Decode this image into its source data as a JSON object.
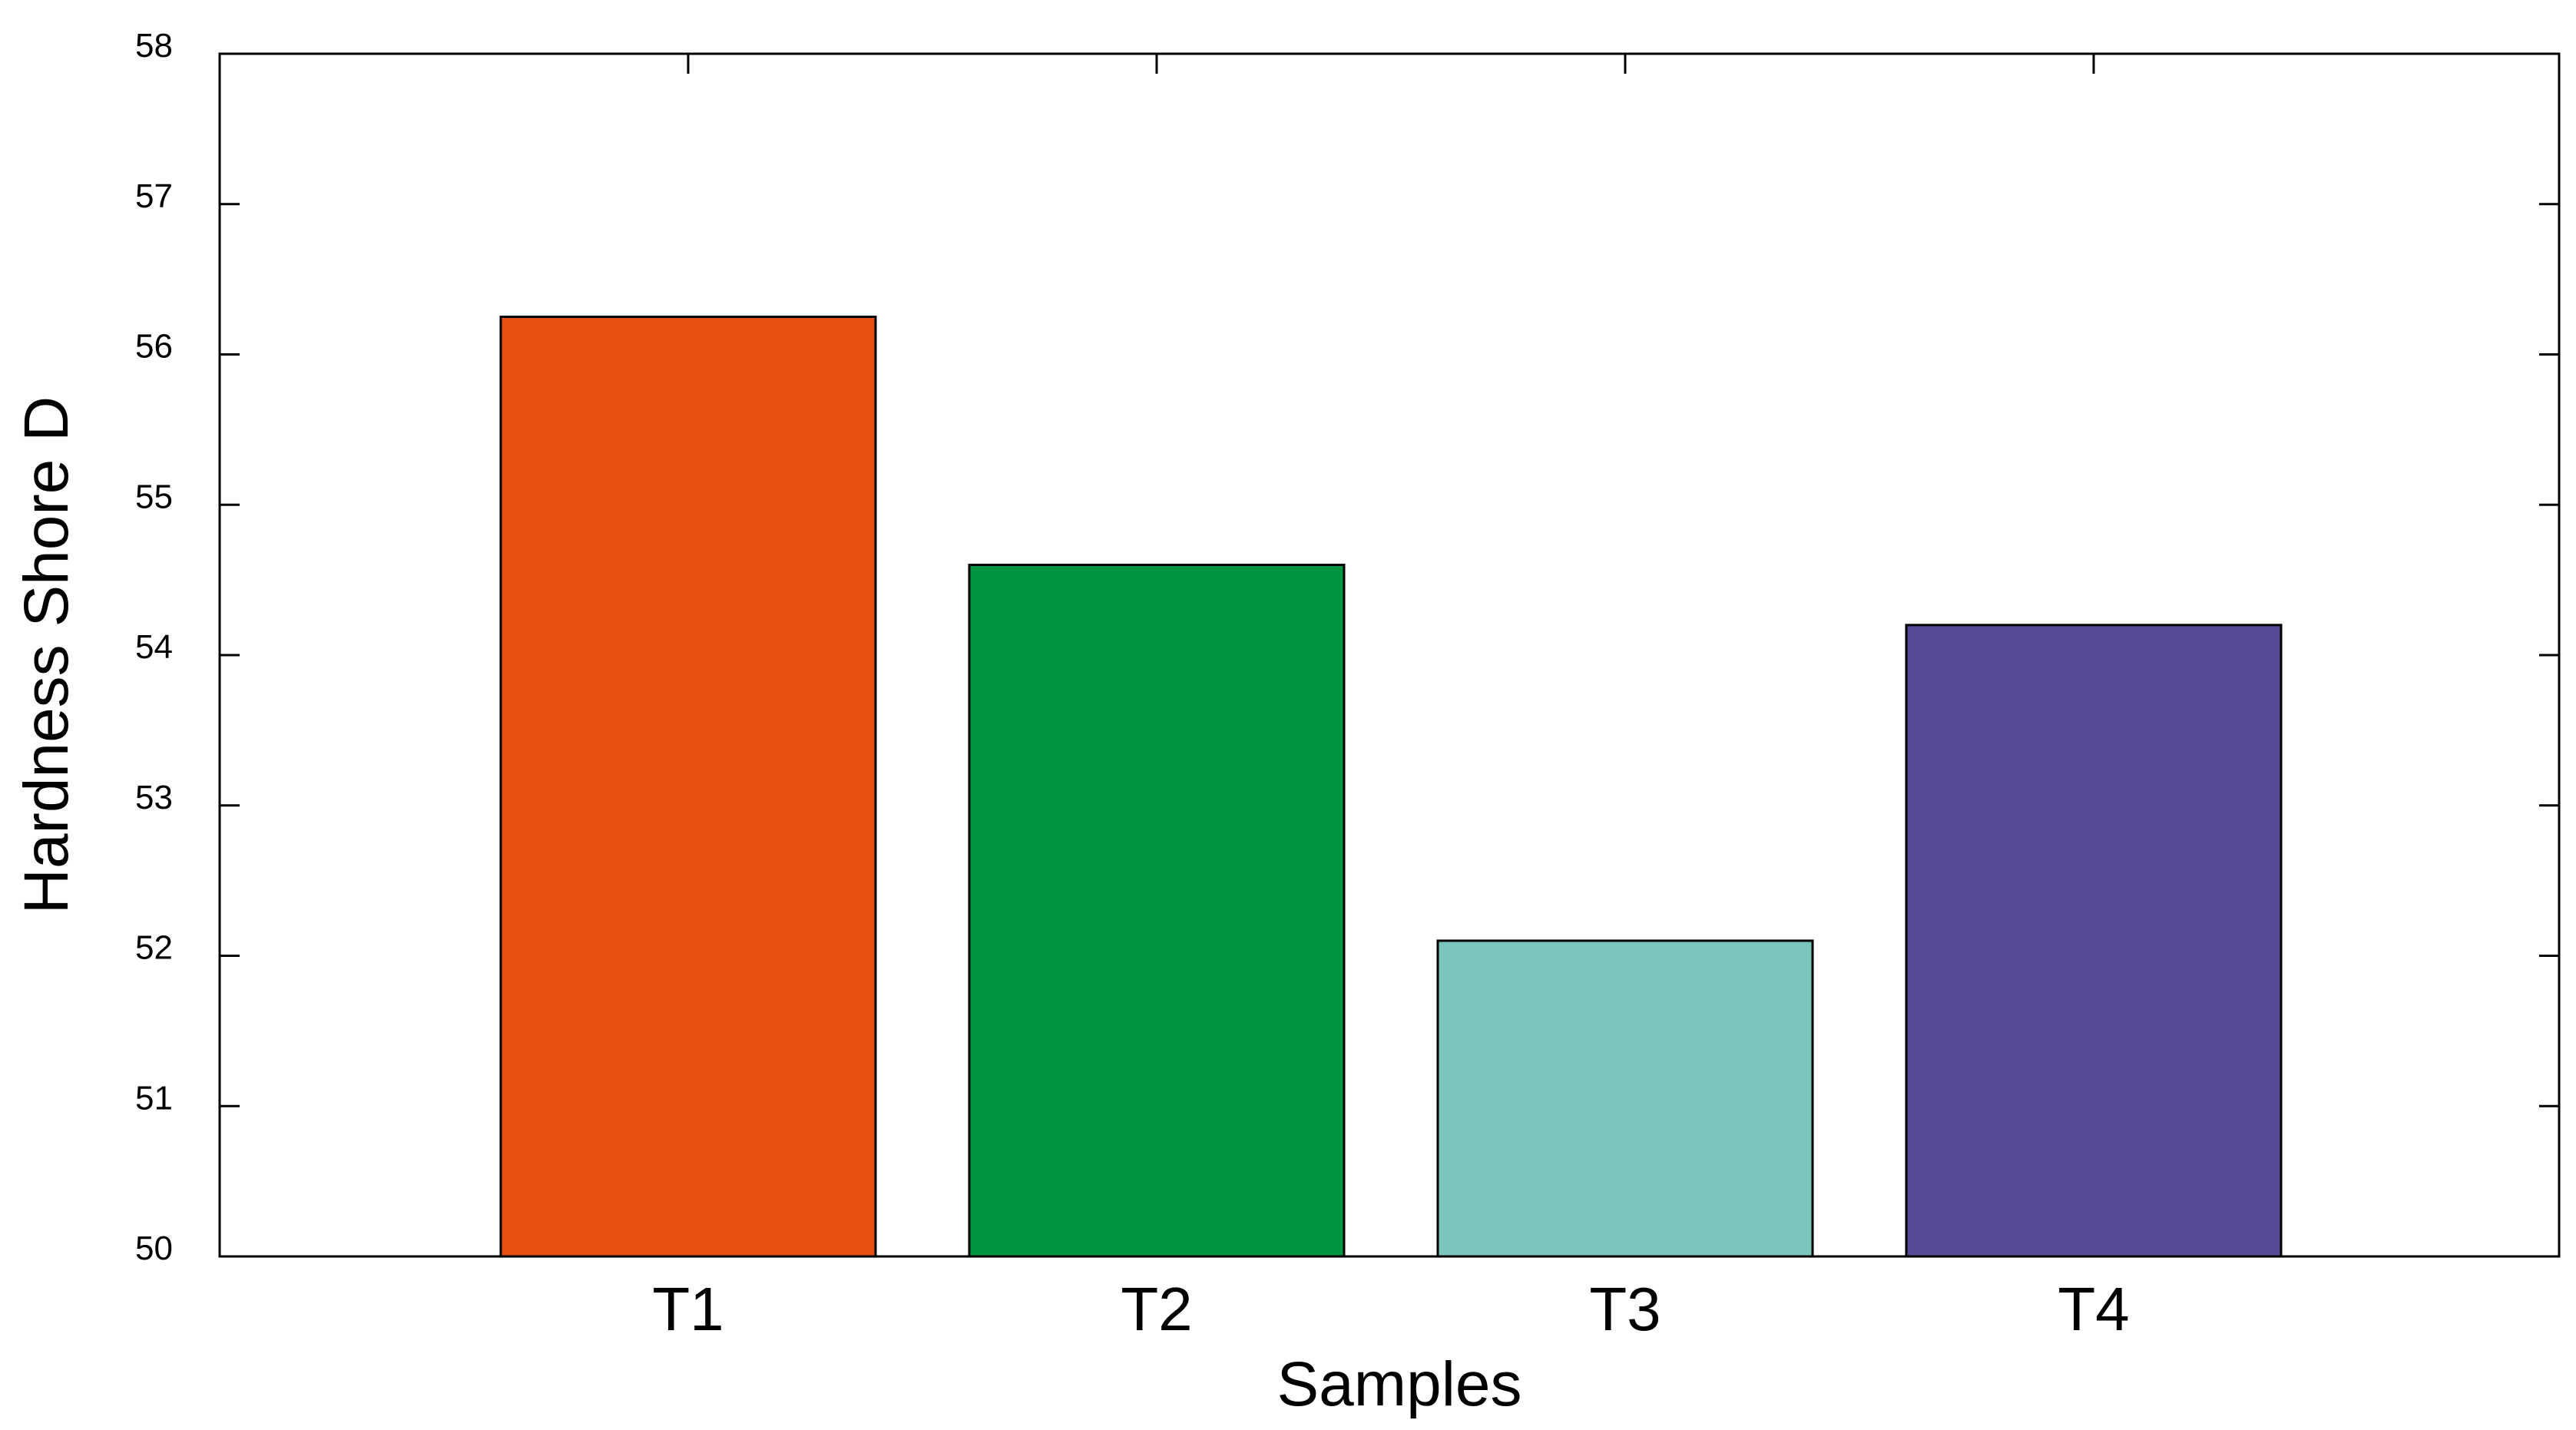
{
  "chart_data": {
    "type": "bar",
    "title": "",
    "xlabel": "Samples",
    "ylabel": "Hardness Shore D",
    "categories": [
      "T1",
      "T2",
      "T3",
      "T4"
    ],
    "values": [
      56.25,
      54.6,
      52.1,
      54.2
    ],
    "colors": [
      "#e85012",
      "#009640",
      "#7bc5be",
      "#574a96"
    ],
    "ylim": [
      50,
      58
    ],
    "yticks": [
      "50",
      "51",
      "52",
      "53",
      "54",
      "55",
      "56",
      "57",
      "58"
    ],
    "grid": false,
    "legend": "none"
  }
}
